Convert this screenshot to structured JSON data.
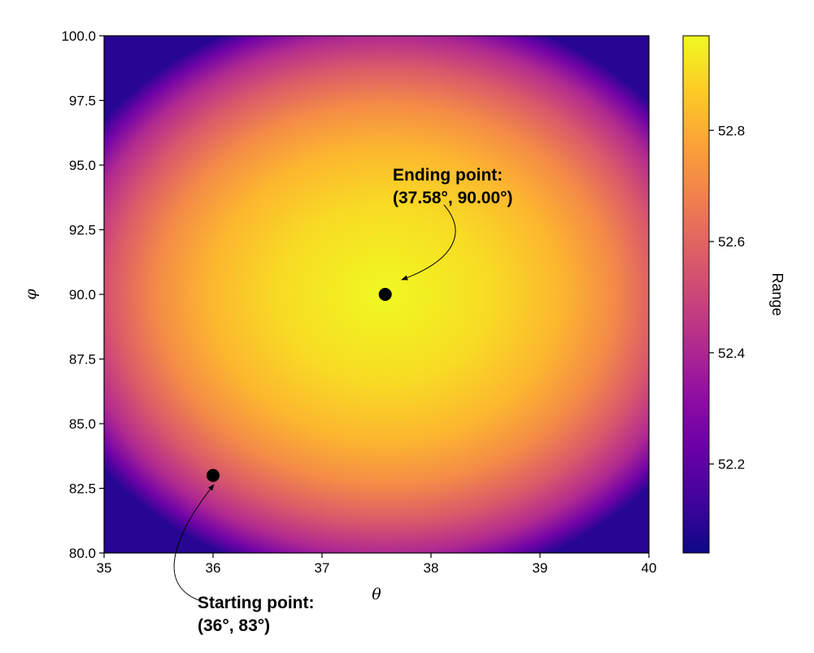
{
  "chart_data": {
    "type": "heatmap",
    "title": "",
    "xlabel": "θ",
    "ylabel": "φ",
    "xlim": [
      35,
      40
    ],
    "ylim": [
      80,
      100
    ],
    "x_ticks": [
      "35",
      "36",
      "37",
      "38",
      "39",
      "40"
    ],
    "y_ticks": [
      "80.0",
      "82.5",
      "85.0",
      "87.5",
      "90.0",
      "92.5",
      "95.0",
      "97.5",
      "100.0"
    ],
    "colormap": "plasma",
    "field": {
      "peak_theta": 37.58,
      "peak_phi": 90.0,
      "max_value": 52.97,
      "min_value": 52.04
    },
    "colorbar": {
      "label": "Range",
      "range": [
        52.04,
        52.97
      ],
      "ticks": [
        "52.2",
        "52.4",
        "52.6",
        "52.8"
      ]
    },
    "points": [
      {
        "name": "start",
        "theta": 36,
        "phi": 83,
        "label_line1": "Starting point:",
        "label_line2": "(36°, 83°)"
      },
      {
        "name": "end",
        "theta": 37.58,
        "phi": 90.0,
        "label_line1": "Ending point:",
        "label_line2": "(37.58°, 90.00°)"
      }
    ]
  }
}
